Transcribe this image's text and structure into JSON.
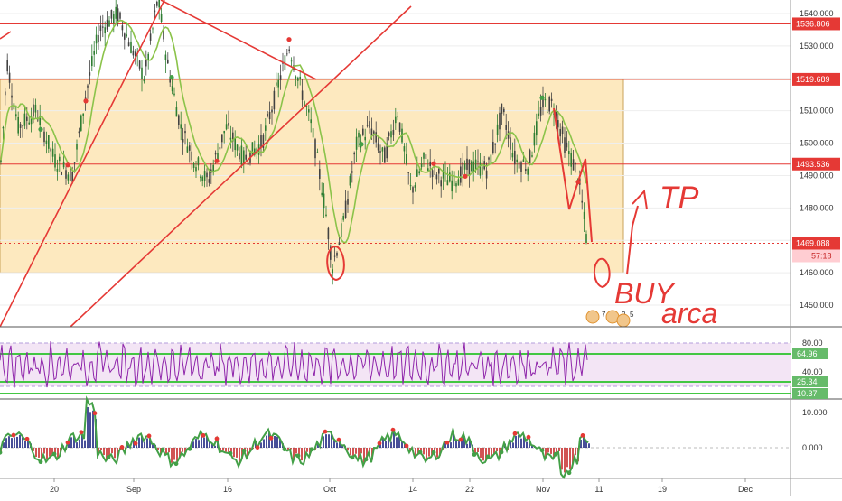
{
  "chart_data": [
    {
      "type": "line",
      "panel": "price",
      "series_name": "",
      "y_ticks": [
        "1540.000",
        "1530.000",
        "1520.000",
        "1510.000",
        "1500.000",
        "1490.000",
        "1480.000",
        "1470.000",
        "1460.000",
        "1450.000"
      ],
      "ylim": [
        1442,
        1542
      ],
      "levels": [
        {
          "label": "1536.806",
          "value": 1536.806,
          "color": "#e53935"
        },
        {
          "label": "1519.689",
          "value": 1519.689,
          "color": "#e53935"
        },
        {
          "label": "1493.536",
          "value": 1493.536,
          "color": "#e53935"
        },
        {
          "label": "1469.088",
          "value": 1469.088,
          "color": "#e53935"
        }
      ],
      "countdown": "57:18",
      "range_box": {
        "top": 1519.689,
        "bottom": 1459.7,
        "fill": "#fde9bf"
      },
      "annotations": {
        "tp": "TP",
        "buy": "BUY",
        "zone": "arca"
      },
      "event_badges": [
        "7",
        "2",
        "5"
      ]
    },
    {
      "type": "line",
      "panel": "oscillator",
      "y_ticks": [
        "80.00",
        "40.00"
      ],
      "tags": [
        {
          "label": "64.96",
          "color": "#66bb6a"
        },
        {
          "label": "25.34",
          "color": "#66bb6a"
        },
        {
          "label": "10.37",
          "color": "#66bb6a"
        }
      ],
      "upper_level": 80,
      "lower_level": 20,
      "line_color": "#8e24aa"
    },
    {
      "type": "bar",
      "panel": "momentum",
      "y_ticks": [
        "10.000",
        "0.000"
      ]
    }
  ],
  "x_axis": [
    "20",
    "Sep",
    "16",
    "Oct",
    "14",
    "22",
    "Nov",
    "11",
    "19",
    "Dec"
  ],
  "colors": {
    "red": "#e53935",
    "green": "#43a047",
    "bg": "#fde9bf",
    "purple": "#8e24aa"
  }
}
